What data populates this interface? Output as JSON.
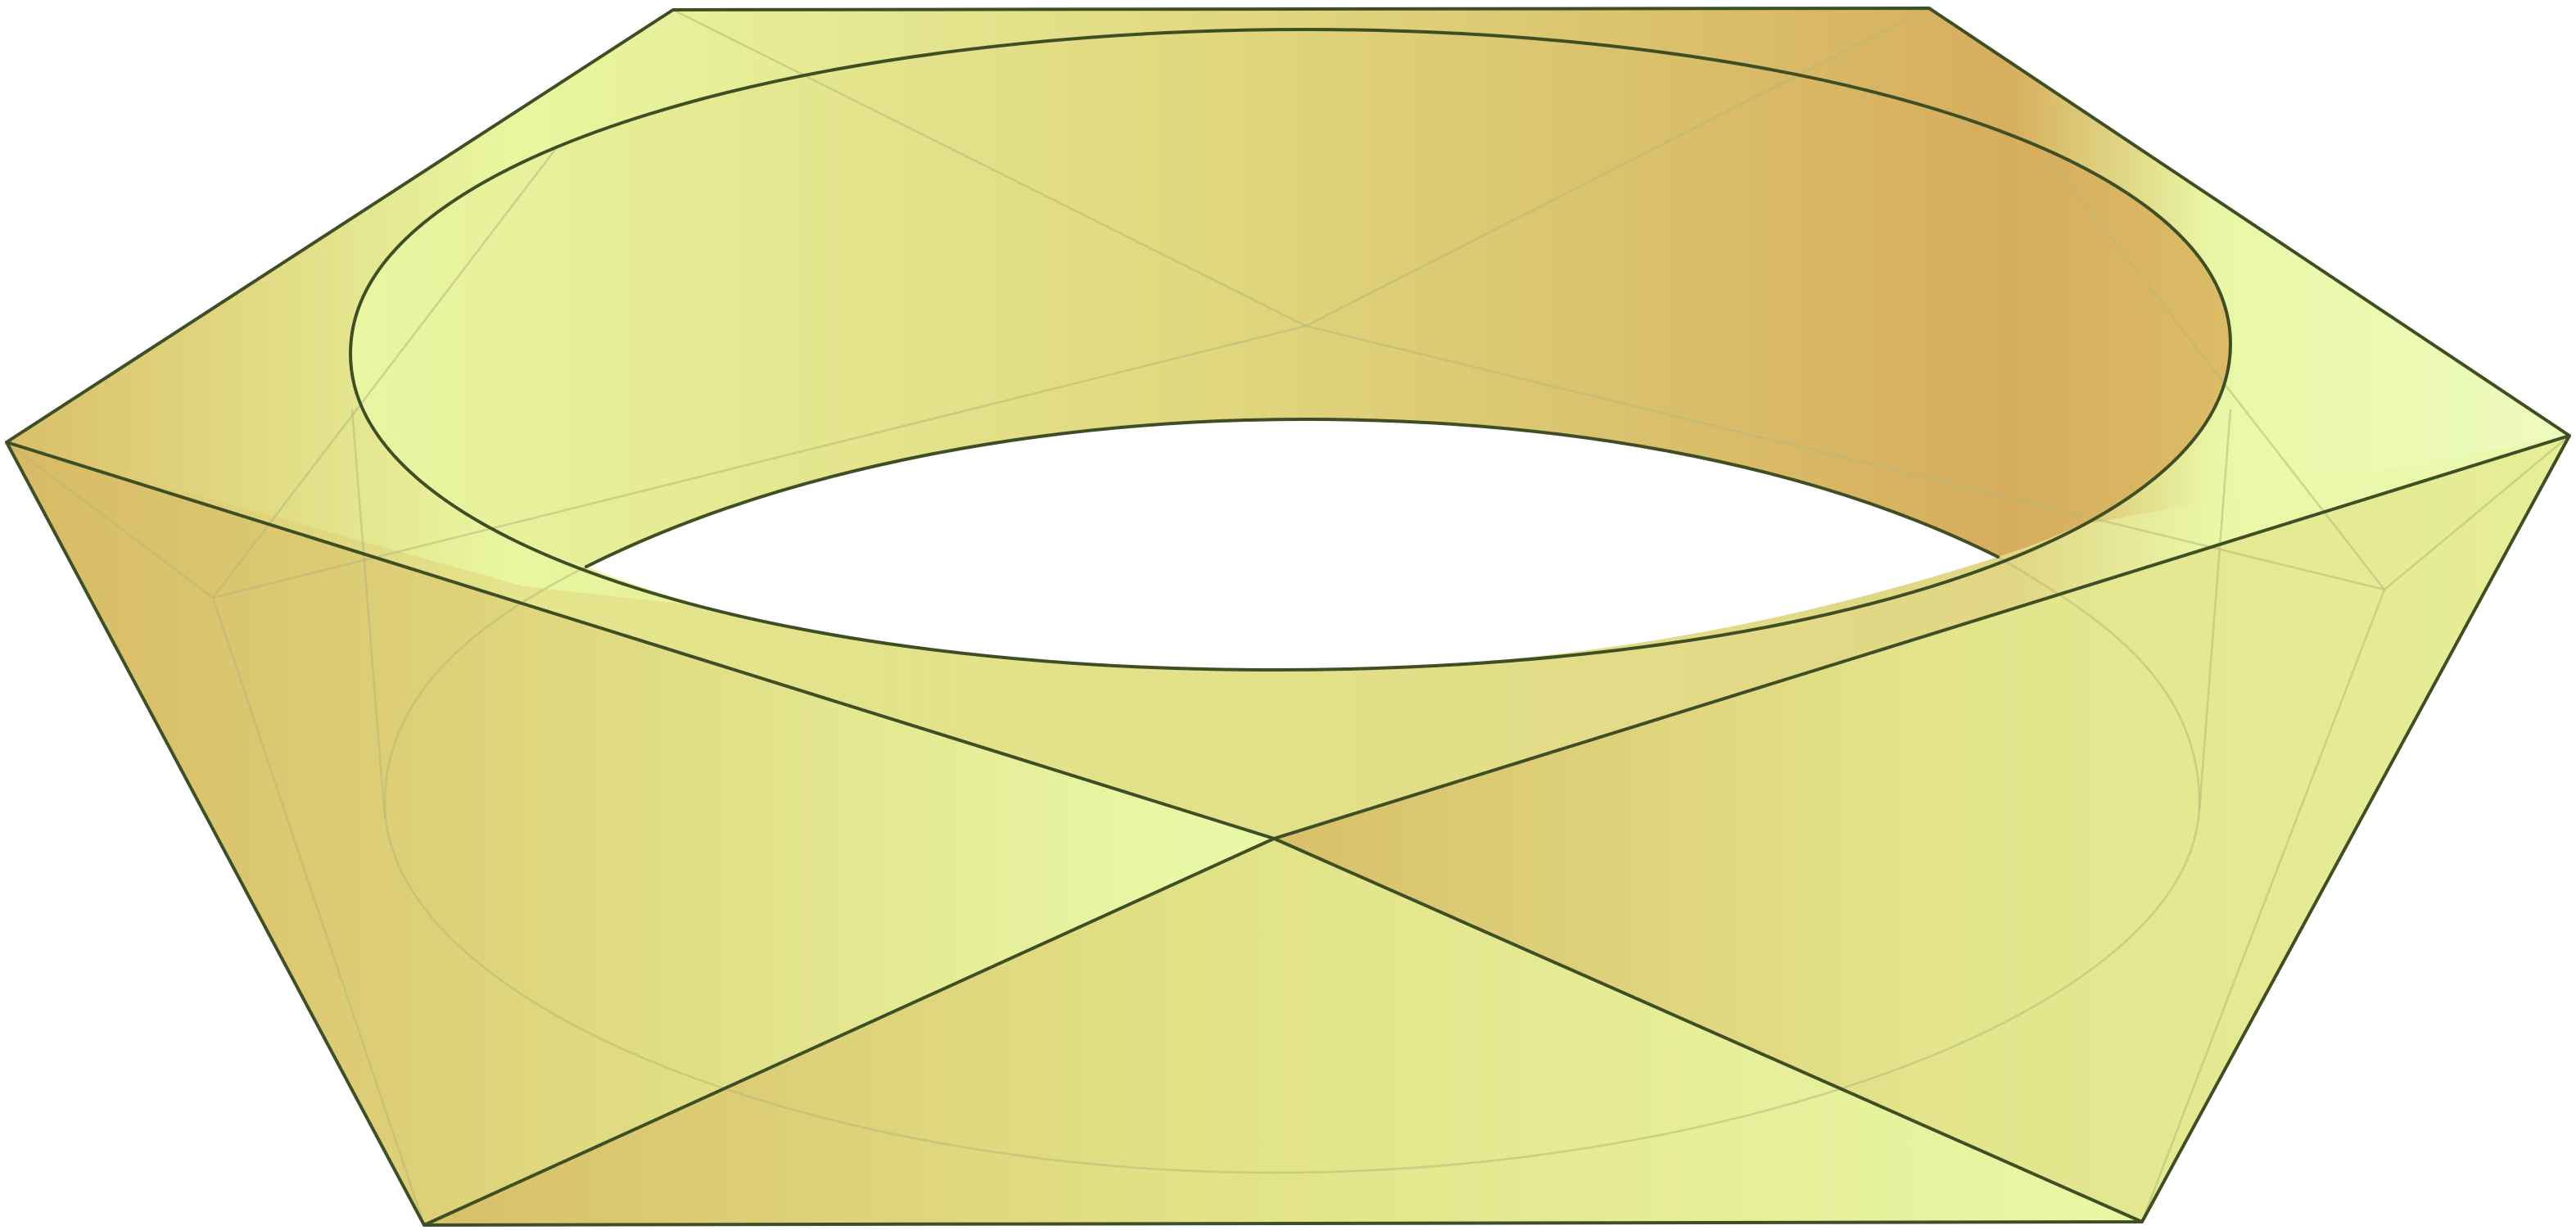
{
  "diagram": {
    "subject": "twisted-band-solid",
    "colors": {
      "light": "#e9f8a6",
      "mid": "#e1dd82",
      "dark": "#d6ae5e",
      "edge": "#3f4f25",
      "hidden_edge": "#b5b878",
      "hole": "#ffffff"
    }
  }
}
